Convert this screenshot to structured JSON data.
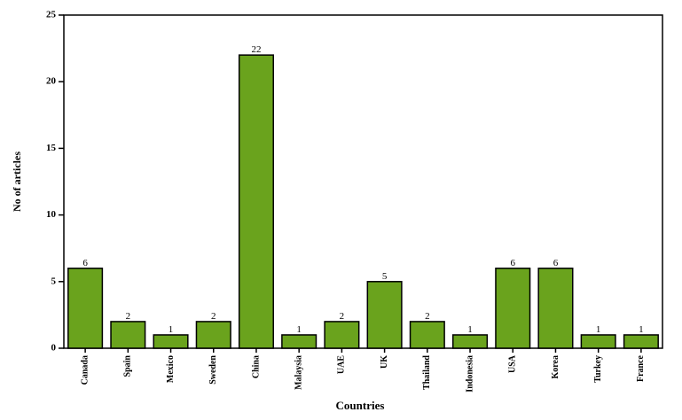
{
  "chart_data": {
    "type": "bar",
    "x_label": "Countries",
    "y_label": "No of articles",
    "categories": [
      "Canada",
      "Spain",
      "Mexico",
      "Sweden",
      "China",
      "Malaysia",
      "UAE",
      "UK",
      "Thailand",
      "Indonesia",
      "USA",
      "Korea",
      "Turkey",
      "France"
    ],
    "values": [
      6,
      2,
      1,
      2,
      22,
      1,
      2,
      5,
      2,
      1,
      6,
      6,
      1,
      1
    ],
    "color": "#6aa31d",
    "ylim": [
      0,
      25
    ],
    "yticks": [
      0,
      5,
      10,
      15,
      20,
      25
    ],
    "grid": false
  }
}
